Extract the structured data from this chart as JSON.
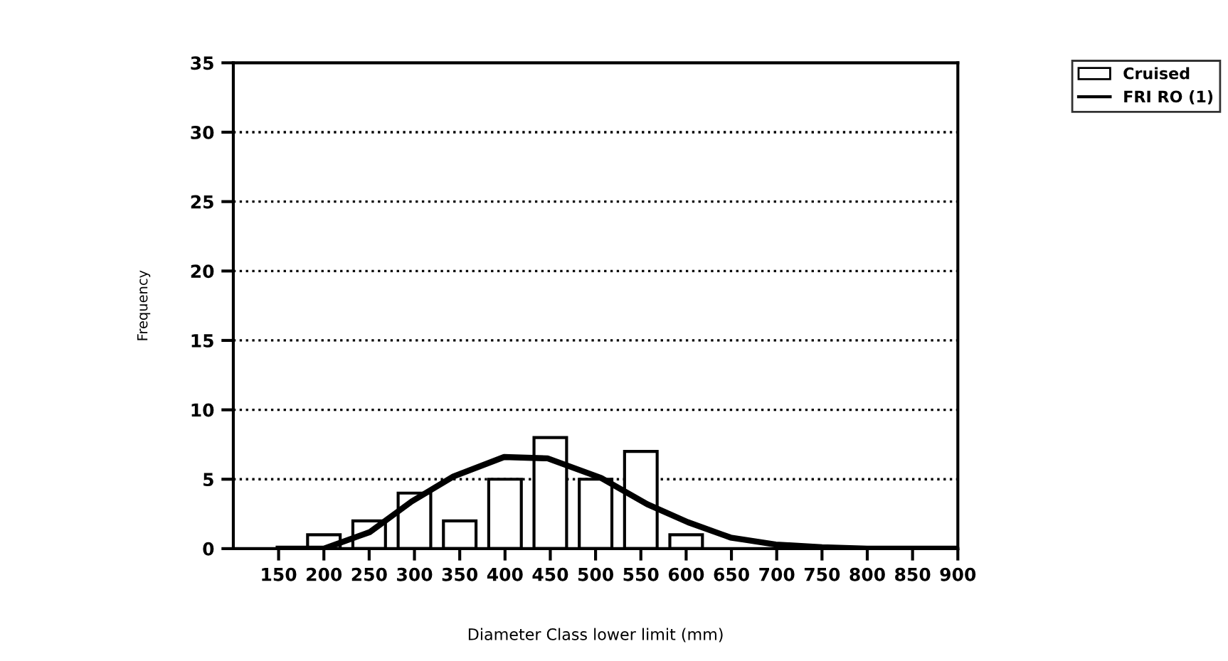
{
  "chart_data": {
    "type": "bar",
    "xlabel": "Diameter Class lower limit (mm)",
    "ylabel": "Frequency",
    "series": [
      {
        "name": "Cruised",
        "color": "#ffffff",
        "x": [
          200,
          250,
          300,
          350,
          400,
          450,
          500,
          550,
          600
        ],
        "values": [
          1,
          2,
          4,
          2,
          5,
          8,
          5,
          7,
          1
        ]
      },
      {
        "name": "FRI RO (1)",
        "type": "line",
        "color": "#000000",
        "x": [
          150,
          200,
          251,
          297,
          343,
          399,
          447,
          506,
          557,
          602,
          649,
          699,
          750,
          800,
          850,
          900
        ],
        "values": [
          0,
          0,
          1.2,
          3.4,
          5.2,
          6.6,
          6.5,
          5.1,
          3.2,
          1.9,
          0.8,
          0.3,
          0.1,
          0,
          0,
          0
        ]
      }
    ],
    "xlim": [
      100,
      900
    ],
    "xticks": [
      150,
      200,
      250,
      300,
      350,
      400,
      450,
      500,
      550,
      600,
      650,
      700,
      750,
      800,
      850,
      900
    ],
    "ylim": [
      0,
      35
    ],
    "yticks": [
      0,
      5,
      10,
      15,
      20,
      25,
      30,
      35
    ],
    "grid": "y",
    "legend": "top right",
    "line_style": "solid",
    "marker": "none"
  }
}
